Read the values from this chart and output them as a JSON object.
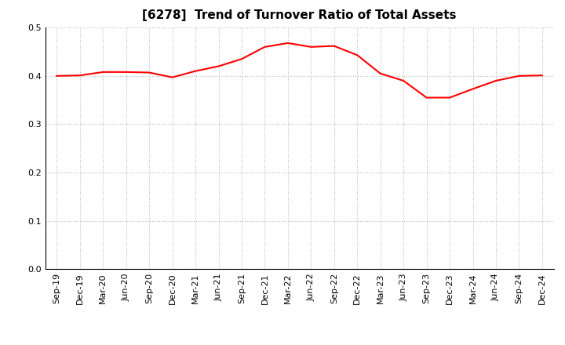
{
  "title": "[6278]  Trend of Turnover Ratio of Total Assets",
  "line_color": "#FF0000",
  "background_color": "#FFFFFF",
  "grid_color": "#BBBBBB",
  "ylim": [
    0.0,
    0.5
  ],
  "yticks": [
    0.0,
    0.1,
    0.2,
    0.3,
    0.4,
    0.5
  ],
  "x_labels": [
    "Sep-19",
    "Dec-19",
    "Mar-20",
    "Jun-20",
    "Sep-20",
    "Dec-20",
    "Mar-21",
    "Jun-21",
    "Sep-21",
    "Dec-21",
    "Mar-22",
    "Jun-22",
    "Sep-22",
    "Dec-22",
    "Mar-23",
    "Jun-23",
    "Sep-23",
    "Dec-23",
    "Mar-24",
    "Jun-24",
    "Sep-24",
    "Dec-24"
  ],
  "y_values": [
    0.4,
    0.401,
    0.408,
    0.408,
    0.407,
    0.397,
    0.41,
    0.42,
    0.435,
    0.46,
    0.468,
    0.46,
    0.462,
    0.443,
    0.405,
    0.39,
    0.355,
    0.355,
    0.373,
    0.39,
    0.4,
    0.401
  ],
  "title_fontsize": 11,
  "tick_fontsize": 8,
  "line_width": 1.5
}
